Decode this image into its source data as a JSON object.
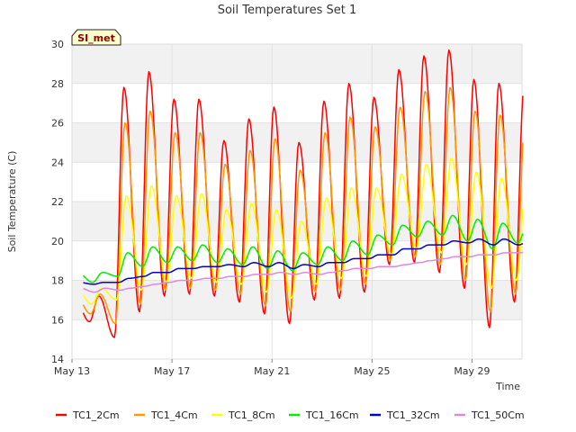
{
  "chart_data": {
    "type": "line",
    "title": "Soil Temperatures Set 1",
    "xlabel": "Time",
    "ylabel": "Soil Temperature (C)",
    "site_label": "SI_met",
    "ylim": [
      14,
      30
    ],
    "yticks": [
      14,
      16,
      18,
      20,
      22,
      24,
      26,
      28,
      30
    ],
    "xlim": [
      "2023-05-13",
      "2023-05-31"
    ],
    "xticks": [
      {
        "date": "2023-05-13",
        "label": "May 13"
      },
      {
        "date": "2023-05-17",
        "label": "May 17"
      },
      {
        "date": "2023-05-21",
        "label": "May 21"
      },
      {
        "date": "2023-05-25",
        "label": "May 25"
      },
      {
        "date": "2023-05-29",
        "label": "May 29"
      }
    ],
    "grid": true,
    "legend_position": "bottom",
    "daily_dates": [
      "May 13",
      "May 14",
      "May 15",
      "May 16",
      "May 17",
      "May 18",
      "May 19",
      "May 20",
      "May 21",
      "May 22",
      "May 23",
      "May 24",
      "May 25",
      "May 26",
      "May 27",
      "May 28",
      "May 29",
      "May 30"
    ],
    "series": [
      {
        "name": "TC1_2Cm",
        "color": "#ff0000",
        "daily_max": [
          17.2,
          27.8,
          28.6,
          27.2,
          27.2,
          25.1,
          26.2,
          26.8,
          25.0,
          27.1,
          28.0,
          27.3,
          28.7,
          29.4,
          29.7,
          28.2,
          28.0,
          27.7
        ],
        "daily_min": [
          15.9,
          15.1,
          16.4,
          17.2,
          17.3,
          17.2,
          16.9,
          16.3,
          15.8,
          17.0,
          17.1,
          17.4,
          18.8,
          18.9,
          18.4,
          17.6,
          15.6,
          16.9
        ]
      },
      {
        "name": "TC1_4Cm",
        "color": "#ff9900",
        "daily_max": [
          17.3,
          26.0,
          26.6,
          25.5,
          25.5,
          23.9,
          24.6,
          25.2,
          23.6,
          25.5,
          26.3,
          25.8,
          26.8,
          27.6,
          27.8,
          26.6,
          26.4,
          26.2
        ],
        "daily_min": [
          16.3,
          15.8,
          16.8,
          17.5,
          17.6,
          17.5,
          17.3,
          16.7,
          16.4,
          17.4,
          17.5,
          17.8,
          19.0,
          19.2,
          18.8,
          18.0,
          16.4,
          17.3
        ]
      },
      {
        "name": "TC1_8Cm",
        "color": "#ffff00",
        "daily_max": [
          17.6,
          22.3,
          22.8,
          22.3,
          22.4,
          21.6,
          21.9,
          21.6,
          21.0,
          22.2,
          22.7,
          22.7,
          23.4,
          23.9,
          24.2,
          23.5,
          23.2,
          23.1
        ],
        "daily_min": [
          16.8,
          17.0,
          17.5,
          17.9,
          18.1,
          17.9,
          17.8,
          17.4,
          17.1,
          17.8,
          18.1,
          18.2,
          19.3,
          19.6,
          19.4,
          18.8,
          17.6,
          18.0
        ]
      },
      {
        "name": "TC1_16Cm",
        "color": "#00ee00",
        "daily_max": [
          18.4,
          19.4,
          19.7,
          19.7,
          19.8,
          19.6,
          19.7,
          19.5,
          19.4,
          19.7,
          20.0,
          20.3,
          20.8,
          21.0,
          21.3,
          21.1,
          20.9,
          20.8
        ],
        "daily_min": [
          17.9,
          18.2,
          18.7,
          18.9,
          19.0,
          18.9,
          18.8,
          18.6,
          18.5,
          18.8,
          19.0,
          19.3,
          19.8,
          20.2,
          20.3,
          20.0,
          19.6,
          19.9
        ]
      },
      {
        "name": "TC1_32Cm",
        "color": "#0000cc",
        "daily_max": [
          17.9,
          18.1,
          18.4,
          18.6,
          18.7,
          18.8,
          18.9,
          18.9,
          18.8,
          18.9,
          19.1,
          19.3,
          19.6,
          19.8,
          20.0,
          20.1,
          20.1,
          20.0
        ],
        "daily_min": [
          17.8,
          17.9,
          18.2,
          18.4,
          18.6,
          18.7,
          18.7,
          18.7,
          18.6,
          18.7,
          18.9,
          19.1,
          19.3,
          19.6,
          19.8,
          19.9,
          19.8,
          19.8
        ]
      },
      {
        "name": "TC1_50Cm",
        "color": "#dd88dd",
        "daily_max": [
          17.6,
          17.6,
          17.8,
          18.0,
          18.1,
          18.2,
          18.3,
          18.4,
          18.4,
          18.4,
          18.6,
          18.7,
          18.8,
          19.0,
          19.2,
          19.3,
          19.4,
          19.5
        ],
        "daily_min": [
          17.4,
          17.5,
          17.7,
          17.9,
          18.0,
          18.1,
          18.2,
          18.3,
          18.3,
          18.3,
          18.5,
          18.6,
          18.7,
          18.9,
          19.1,
          19.2,
          19.3,
          19.4
        ]
      }
    ]
  }
}
